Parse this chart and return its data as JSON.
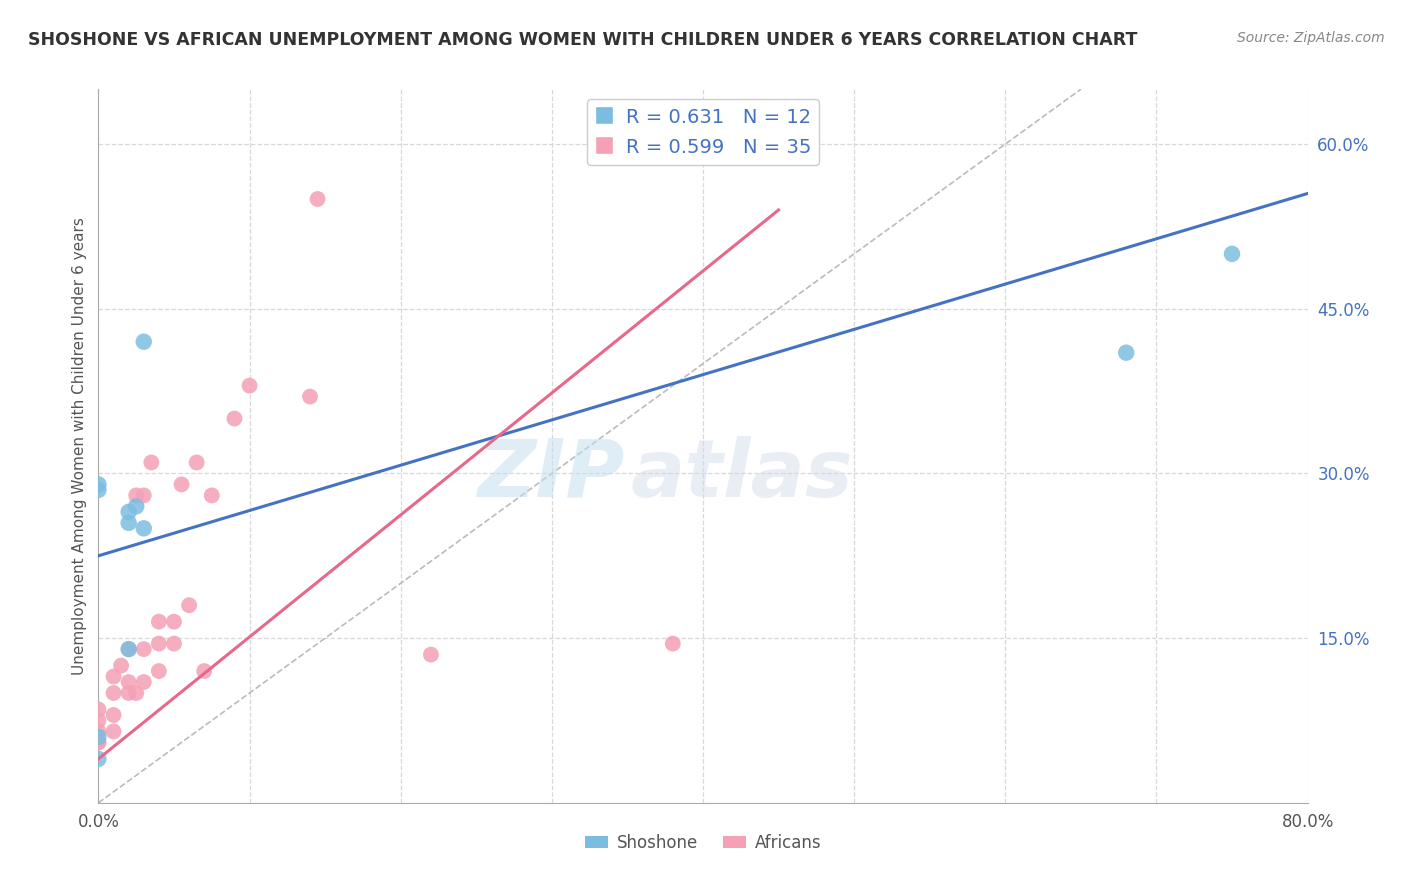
{
  "title": "SHOSHONE VS AFRICAN UNEMPLOYMENT AMONG WOMEN WITH CHILDREN UNDER 6 YEARS CORRELATION CHART",
  "source": "Source: ZipAtlas.com",
  "ylabel": "Unemployment Among Women with Children Under 6 years",
  "xlabel": "",
  "xlim": [
    0.0,
    0.8
  ],
  "ylim": [
    0.0,
    0.65
  ],
  "xticks": [
    0.0,
    0.1,
    0.2,
    0.3,
    0.4,
    0.5,
    0.6,
    0.7,
    0.8
  ],
  "yticks_right": [
    0.15,
    0.3,
    0.45,
    0.6
  ],
  "yticklabels_right": [
    "15.0%",
    "30.0%",
    "45.0%",
    "60.0%"
  ],
  "shoshone_color": "#7bbde0",
  "african_color": "#f4a0b5",
  "shoshone_line_color": "#4472c4",
  "african_line_color": "#e8688a",
  "diagonal_color": "#bbbbbb",
  "shoshone_R": 0.631,
  "shoshone_N": 12,
  "african_R": 0.599,
  "african_N": 35,
  "legend_text_color": "#4472c4",
  "shoshone_line_x0": 0.0,
  "shoshone_line_y0": 0.225,
  "shoshone_line_x1": 0.8,
  "shoshone_line_y1": 0.555,
  "african_line_x0": 0.0,
  "african_line_y0": 0.04,
  "african_line_x1": 0.45,
  "african_line_y1": 0.54,
  "shoshone_x": [
    0.0,
    0.0,
    0.0,
    0.0,
    0.02,
    0.02,
    0.02,
    0.025,
    0.03,
    0.03,
    0.68,
    0.75
  ],
  "shoshone_y": [
    0.04,
    0.06,
    0.285,
    0.29,
    0.14,
    0.255,
    0.265,
    0.27,
    0.25,
    0.42,
    0.41,
    0.5
  ],
  "african_x": [
    0.0,
    0.0,
    0.0,
    0.0,
    0.01,
    0.01,
    0.01,
    0.01,
    0.015,
    0.02,
    0.02,
    0.02,
    0.025,
    0.025,
    0.03,
    0.03,
    0.03,
    0.035,
    0.04,
    0.04,
    0.04,
    0.05,
    0.05,
    0.055,
    0.06,
    0.065,
    0.07,
    0.075,
    0.09,
    0.1,
    0.14,
    0.145,
    0.22,
    0.38,
    0.0
  ],
  "african_y": [
    0.055,
    0.065,
    0.075,
    0.085,
    0.065,
    0.08,
    0.1,
    0.115,
    0.125,
    0.1,
    0.11,
    0.14,
    0.1,
    0.28,
    0.11,
    0.14,
    0.28,
    0.31,
    0.12,
    0.145,
    0.165,
    0.145,
    0.165,
    0.29,
    0.18,
    0.31,
    0.12,
    0.28,
    0.35,
    0.38,
    0.37,
    0.55,
    0.135,
    0.145,
    0.055
  ],
  "watermark_zip": "ZIP",
  "watermark_atlas": "atlas",
  "grid_color": "#d8d8d8",
  "background_color": "#ffffff"
}
